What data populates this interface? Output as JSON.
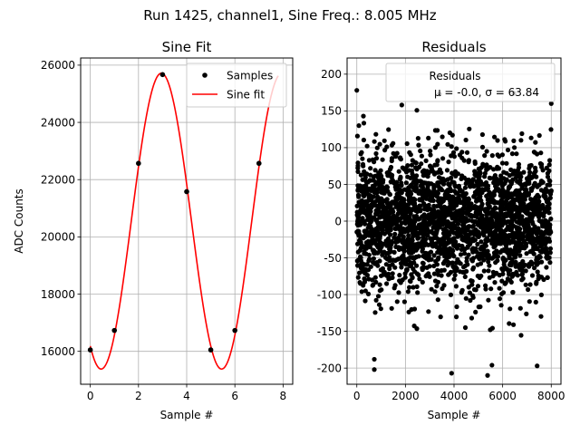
{
  "figure": {
    "suptitle": "Run 1425, channel1, Sine Freq.: 8.005 MHz"
  },
  "chart_data": [
    {
      "type": "line",
      "title": "Sine Fit",
      "xlabel": "Sample #",
      "ylabel": "ADC Counts",
      "xlim": [
        -0.4,
        8.4
      ],
      "ylim": [
        14850,
        26250
      ],
      "xticks": [
        0,
        2,
        4,
        6,
        8
      ],
      "yticks": [
        16000,
        18000,
        20000,
        22000,
        24000,
        26000
      ],
      "grid": true,
      "legend_placement": "top-right",
      "series": [
        {
          "name": "Samples",
          "style": "points",
          "color": "#000000",
          "x": [
            0,
            1,
            2,
            3,
            4,
            5,
            6,
            7
          ],
          "y": [
            16050,
            16730,
            22570,
            25670,
            21580,
            16050,
            16730,
            22570
          ]
        },
        {
          "name": "Sine fit",
          "style": "line",
          "color": "#ff0000",
          "fit": {
            "offset": 20550,
            "amplitude": 5170,
            "period": 5.0,
            "peak_x": 2.95,
            "x_range": [
              0,
              7.8
            ]
          }
        }
      ]
    },
    {
      "type": "scatter",
      "title": "Residuals",
      "xlabel": "Sample #",
      "ylabel": "",
      "xlim": [
        -400,
        8400
      ],
      "ylim": [
        -222,
        222
      ],
      "xticks": [
        0,
        2000,
        4000,
        6000,
        8000
      ],
      "yticks": [
        -200,
        -150,
        -100,
        -50,
        0,
        50,
        100,
        150,
        200
      ],
      "grid": true,
      "legend_placement": "top-right",
      "legend": {
        "name": "Residuals",
        "stats": "μ = -0.0, σ = 63.84"
      },
      "series": [
        {
          "name": "Residuals",
          "color": "#000000",
          "summary": {
            "count": 8000,
            "mean": -0.0,
            "std": 63.84,
            "min": -210,
            "max": 178
          },
          "highlighted_points": [
            {
              "x": 0,
              "y": 178
            },
            {
              "x": 360,
              "y": -95
            },
            {
              "x": 720,
              "y": -188
            },
            {
              "x": 720,
              "y": -202
            },
            {
              "x": 1850,
              "y": 158
            },
            {
              "x": 3400,
              "y": 173
            },
            {
              "x": 3900,
              "y": -207
            },
            {
              "x": 5380,
              "y": -210
            },
            {
              "x": 5560,
              "y": -196
            },
            {
              "x": 7420,
              "y": -197
            },
            {
              "x": 8000,
              "y": 160
            }
          ]
        }
      ]
    }
  ]
}
